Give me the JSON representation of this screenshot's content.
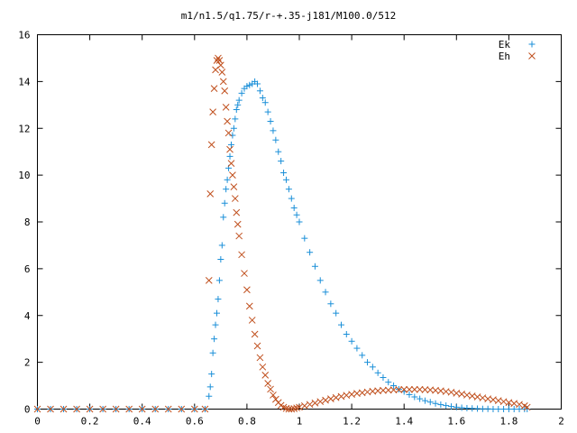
{
  "chart_data": {
    "type": "scatter",
    "title": "m1/n1.5/q1.75/r-+.35-j181/M100.0/512",
    "xlabel": "",
    "ylabel": "",
    "xlim": [
      0,
      2
    ],
    "ylim": [
      0,
      16
    ],
    "xticks": [
      "0",
      "0.2",
      "0.4",
      "0.6",
      "0.8",
      "1",
      "1.2",
      "1.4",
      "1.6",
      "1.8",
      "2"
    ],
    "yticks": [
      "0",
      "2",
      "4",
      "6",
      "8",
      "10",
      "12",
      "14",
      "16"
    ],
    "grid": false,
    "legend_position": "top-right",
    "series": [
      {
        "name": "Ek",
        "marker": "plus",
        "color": "#1a8fd8",
        "points": [
          [
            0.0,
            0
          ],
          [
            0.05,
            0
          ],
          [
            0.1,
            0
          ],
          [
            0.15,
            0
          ],
          [
            0.2,
            0
          ],
          [
            0.25,
            0
          ],
          [
            0.3,
            0
          ],
          [
            0.35,
            0
          ],
          [
            0.4,
            0
          ],
          [
            0.45,
            0
          ],
          [
            0.5,
            0
          ],
          [
            0.55,
            0
          ],
          [
            0.6,
            0
          ],
          [
            0.64,
            0
          ],
          [
            0.655,
            0.55
          ],
          [
            0.66,
            0.95
          ],
          [
            0.665,
            1.5
          ],
          [
            0.67,
            2.4
          ],
          [
            0.675,
            3.0
          ],
          [
            0.68,
            3.6
          ],
          [
            0.685,
            4.1
          ],
          [
            0.69,
            4.7
          ],
          [
            0.695,
            5.5
          ],
          [
            0.7,
            6.4
          ],
          [
            0.705,
            7.0
          ],
          [
            0.71,
            8.2
          ],
          [
            0.715,
            8.8
          ],
          [
            0.72,
            9.4
          ],
          [
            0.725,
            9.8
          ],
          [
            0.73,
            10.3
          ],
          [
            0.735,
            10.8
          ],
          [
            0.74,
            11.3
          ],
          [
            0.745,
            11.7
          ],
          [
            0.75,
            12.0
          ],
          [
            0.755,
            12.4
          ],
          [
            0.76,
            12.8
          ],
          [
            0.765,
            13.0
          ],
          [
            0.77,
            13.2
          ],
          [
            0.78,
            13.5
          ],
          [
            0.79,
            13.7
          ],
          [
            0.8,
            13.8
          ],
          [
            0.81,
            13.85
          ],
          [
            0.82,
            13.9
          ],
          [
            0.83,
            14.0
          ],
          [
            0.84,
            13.9
          ],
          [
            0.85,
            13.6
          ],
          [
            0.86,
            13.3
          ],
          [
            0.87,
            13.1
          ],
          [
            0.88,
            12.7
          ],
          [
            0.89,
            12.3
          ],
          [
            0.9,
            11.9
          ],
          [
            0.91,
            11.5
          ],
          [
            0.92,
            11.0
          ],
          [
            0.93,
            10.6
          ],
          [
            0.94,
            10.1
          ],
          [
            0.95,
            9.8
          ],
          [
            0.96,
            9.4
          ],
          [
            0.97,
            9.0
          ],
          [
            0.98,
            8.6
          ],
          [
            0.99,
            8.3
          ],
          [
            1.0,
            8.0
          ],
          [
            1.02,
            7.3
          ],
          [
            1.04,
            6.7
          ],
          [
            1.06,
            6.1
          ],
          [
            1.08,
            5.5
          ],
          [
            1.1,
            5.0
          ],
          [
            1.12,
            4.5
          ],
          [
            1.14,
            4.1
          ],
          [
            1.16,
            3.6
          ],
          [
            1.18,
            3.2
          ],
          [
            1.2,
            2.9
          ],
          [
            1.22,
            2.6
          ],
          [
            1.24,
            2.3
          ],
          [
            1.26,
            2.0
          ],
          [
            1.28,
            1.8
          ],
          [
            1.3,
            1.55
          ],
          [
            1.32,
            1.35
          ],
          [
            1.34,
            1.15
          ],
          [
            1.36,
            1.0
          ],
          [
            1.38,
            0.85
          ],
          [
            1.4,
            0.75
          ],
          [
            1.42,
            0.62
          ],
          [
            1.44,
            0.52
          ],
          [
            1.46,
            0.44
          ],
          [
            1.48,
            0.36
          ],
          [
            1.5,
            0.3
          ],
          [
            1.52,
            0.24
          ],
          [
            1.54,
            0.19
          ],
          [
            1.56,
            0.15
          ],
          [
            1.58,
            0.11
          ],
          [
            1.6,
            0.08
          ],
          [
            1.62,
            0.06
          ],
          [
            1.64,
            0.04
          ],
          [
            1.66,
            0.03
          ],
          [
            1.68,
            0.02
          ],
          [
            1.7,
            0.01
          ],
          [
            1.72,
            0.01
          ],
          [
            1.74,
            0.0
          ],
          [
            1.76,
            0.0
          ],
          [
            1.78,
            0.0
          ],
          [
            1.8,
            0.0
          ],
          [
            1.82,
            0.0
          ],
          [
            1.84,
            0.0
          ],
          [
            1.86,
            0.0
          ],
          [
            1.87,
            0.0
          ]
        ]
      },
      {
        "name": "Eh",
        "marker": "cross",
        "color": "#c0501e",
        "points": [
          [
            0.0,
            0
          ],
          [
            0.05,
            0
          ],
          [
            0.1,
            0
          ],
          [
            0.15,
            0
          ],
          [
            0.2,
            0
          ],
          [
            0.25,
            0
          ],
          [
            0.3,
            0
          ],
          [
            0.35,
            0
          ],
          [
            0.4,
            0
          ],
          [
            0.45,
            0
          ],
          [
            0.5,
            0
          ],
          [
            0.55,
            0
          ],
          [
            0.6,
            0
          ],
          [
            0.64,
            0
          ],
          [
            0.655,
            5.5
          ],
          [
            0.66,
            9.2
          ],
          [
            0.665,
            11.3
          ],
          [
            0.67,
            12.7
          ],
          [
            0.675,
            13.7
          ],
          [
            0.68,
            14.5
          ],
          [
            0.685,
            14.9
          ],
          [
            0.69,
            15.0
          ],
          [
            0.695,
            14.9
          ],
          [
            0.7,
            14.7
          ],
          [
            0.705,
            14.4
          ],
          [
            0.71,
            14.0
          ],
          [
            0.715,
            13.6
          ],
          [
            0.72,
            12.9
          ],
          [
            0.725,
            12.3
          ],
          [
            0.73,
            11.8
          ],
          [
            0.735,
            11.1
          ],
          [
            0.74,
            10.5
          ],
          [
            0.745,
            10.0
          ],
          [
            0.75,
            9.5
          ],
          [
            0.755,
            9.0
          ],
          [
            0.76,
            8.4
          ],
          [
            0.765,
            7.9
          ],
          [
            0.77,
            7.4
          ],
          [
            0.78,
            6.6
          ],
          [
            0.79,
            5.8
          ],
          [
            0.8,
            5.1
          ],
          [
            0.81,
            4.4
          ],
          [
            0.82,
            3.8
          ],
          [
            0.83,
            3.2
          ],
          [
            0.84,
            2.7
          ],
          [
            0.85,
            2.2
          ],
          [
            0.86,
            1.8
          ],
          [
            0.87,
            1.45
          ],
          [
            0.88,
            1.1
          ],
          [
            0.89,
            0.85
          ],
          [
            0.9,
            0.6
          ],
          [
            0.91,
            0.42
          ],
          [
            0.92,
            0.28
          ],
          [
            0.93,
            0.16
          ],
          [
            0.94,
            0.08
          ],
          [
            0.95,
            0.03
          ],
          [
            0.96,
            0.0
          ],
          [
            0.97,
            0.0
          ],
          [
            0.98,
            0.02
          ],
          [
            0.99,
            0.05
          ],
          [
            1.0,
            0.08
          ],
          [
            1.02,
            0.14
          ],
          [
            1.04,
            0.2
          ],
          [
            1.06,
            0.26
          ],
          [
            1.08,
            0.32
          ],
          [
            1.1,
            0.38
          ],
          [
            1.12,
            0.44
          ],
          [
            1.14,
            0.49
          ],
          [
            1.16,
            0.54
          ],
          [
            1.18,
            0.59
          ],
          [
            1.2,
            0.63
          ],
          [
            1.22,
            0.67
          ],
          [
            1.24,
            0.7
          ],
          [
            1.26,
            0.73
          ],
          [
            1.28,
            0.76
          ],
          [
            1.3,
            0.78
          ],
          [
            1.32,
            0.8
          ],
          [
            1.34,
            0.81
          ],
          [
            1.36,
            0.82
          ],
          [
            1.38,
            0.83
          ],
          [
            1.4,
            0.84
          ],
          [
            1.42,
            0.84
          ],
          [
            1.44,
            0.84
          ],
          [
            1.46,
            0.84
          ],
          [
            1.48,
            0.83
          ],
          [
            1.5,
            0.82
          ],
          [
            1.52,
            0.8
          ],
          [
            1.54,
            0.78
          ],
          [
            1.56,
            0.75
          ],
          [
            1.58,
            0.72
          ],
          [
            1.6,
            0.68
          ],
          [
            1.62,
            0.64
          ],
          [
            1.64,
            0.6
          ],
          [
            1.66,
            0.56
          ],
          [
            1.68,
            0.52
          ],
          [
            1.7,
            0.48
          ],
          [
            1.72,
            0.44
          ],
          [
            1.74,
            0.4
          ],
          [
            1.76,
            0.36
          ],
          [
            1.78,
            0.32
          ],
          [
            1.8,
            0.28
          ],
          [
            1.82,
            0.24
          ],
          [
            1.84,
            0.2
          ],
          [
            1.86,
            0.14
          ],
          [
            1.87,
            0.08
          ]
        ]
      }
    ]
  }
}
